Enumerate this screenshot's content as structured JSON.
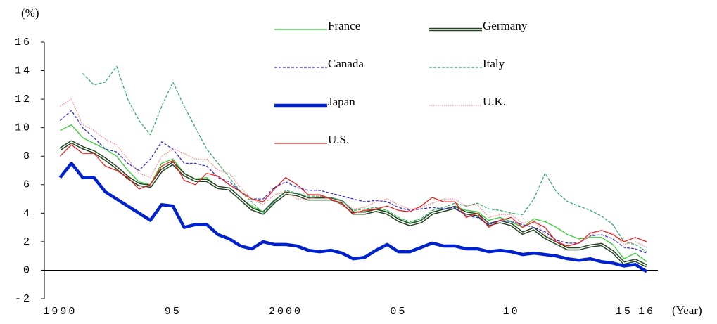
{
  "chart_data": {
    "type": "line",
    "y_label": "(%)",
    "x_label": "(Year)",
    "x": [
      1990,
      1990.5,
      1991,
      1991.5,
      1992,
      1992.5,
      1993,
      1993.5,
      1994,
      1994.5,
      1995,
      1995.5,
      1996,
      1996.5,
      1997,
      1997.5,
      1998,
      1998.5,
      1999,
      1999.5,
      2000,
      2000.5,
      2001,
      2001.5,
      2002,
      2002.5,
      2003,
      2003.5,
      2004,
      2004.5,
      2005,
      2005.5,
      2006,
      2006.5,
      2007,
      2007.5,
      2008,
      2008.5,
      2009,
      2009.5,
      2010,
      2010.5,
      2011,
      2011.5,
      2012,
      2012.5,
      2013,
      2013.5,
      2014,
      2014.5,
      2015,
      2015.5,
      2016
    ],
    "xlim": [
      1989.3,
      2016.5
    ],
    "xticks": [
      {
        "value": 1990,
        "label": "1990"
      },
      {
        "value": 1995,
        "label": "95"
      },
      {
        "value": 2000,
        "label": "2000"
      },
      {
        "value": 2005,
        "label": "05"
      },
      {
        "value": 2010,
        "label": "10"
      },
      {
        "value": 2015,
        "label": "15"
      },
      {
        "value": 2016,
        "label": "16"
      }
    ],
    "ylim": [
      -2,
      16
    ],
    "yticks": [
      -2,
      0,
      2,
      4,
      6,
      8,
      10,
      12,
      14,
      16
    ],
    "series": [
      {
        "name": "France",
        "color": "#33cc33",
        "style": "solid",
        "values": [
          9.8,
          10.2,
          9.3,
          8.9,
          8.5,
          8.0,
          7.0,
          6.2,
          6.0,
          7.5,
          7.8,
          6.8,
          6.4,
          6.5,
          5.8,
          5.7,
          5.0,
          4.5,
          4.1,
          4.9,
          5.5,
          5.3,
          5.0,
          5.1,
          5.0,
          4.7,
          4.1,
          4.1,
          4.3,
          4.1,
          3.6,
          3.3,
          3.5,
          4.0,
          4.2,
          4.5,
          4.2,
          4.1,
          3.5,
          3.7,
          3.4,
          3.0,
          3.6,
          3.4,
          3.0,
          2.5,
          2.2,
          2.3,
          2.3,
          1.8,
          0.8,
          1.2,
          0.6
        ]
      },
      {
        "name": "Germany",
        "color": "#224422",
        "style": "double",
        "values": [
          8.5,
          9.0,
          8.6,
          8.3,
          7.8,
          7.2,
          6.5,
          6.0,
          5.9,
          7.0,
          7.5,
          6.7,
          6.3,
          6.3,
          5.8,
          5.7,
          5.0,
          4.3,
          4.0,
          4.8,
          5.4,
          5.3,
          5.0,
          5.0,
          5.0,
          4.8,
          4.0,
          4.0,
          4.2,
          4.0,
          3.5,
          3.2,
          3.4,
          4.0,
          4.2,
          4.4,
          4.0,
          3.9,
          3.2,
          3.4,
          3.2,
          2.6,
          2.9,
          2.3,
          1.9,
          1.5,
          1.5,
          1.7,
          1.8,
          1.3,
          0.5,
          0.7,
          0.3
        ]
      },
      {
        "name": "Canada",
        "color": "#3333cc",
        "style": "dashed",
        "values": [
          10.5,
          11.2,
          10.0,
          9.3,
          8.5,
          8.3,
          7.5,
          7.0,
          7.8,
          9.0,
          8.5,
          7.5,
          7.5,
          7.3,
          6.5,
          6.2,
          5.5,
          5.0,
          5.0,
          5.8,
          6.2,
          5.8,
          5.6,
          5.6,
          5.4,
          5.2,
          5.0,
          4.8,
          4.9,
          4.8,
          4.4,
          4.2,
          4.3,
          4.4,
          4.3,
          4.4,
          3.8,
          3.7,
          3.2,
          3.5,
          3.4,
          3.2,
          3.0,
          2.7,
          2.1,
          1.9,
          1.9,
          2.4,
          2.5,
          2.2,
          1.6,
          1.5,
          1.2
        ]
      },
      {
        "name": "Italy",
        "color": "#33aa66",
        "style": "dashed",
        "values": [
          null,
          null,
          13.8,
          13.0,
          13.2,
          14.3,
          12.0,
          10.5,
          9.5,
          11.5,
          13.2,
          11.5,
          10.0,
          8.5,
          7.5,
          6.5,
          5.5,
          4.8,
          4.0,
          4.8,
          5.6,
          5.4,
          5.2,
          5.2,
          5.1,
          4.9,
          4.2,
          4.3,
          4.4,
          4.2,
          3.7,
          3.4,
          3.6,
          4.2,
          4.4,
          4.7,
          4.5,
          4.7,
          4.3,
          4.2,
          4.0,
          3.9,
          5.0,
          6.8,
          5.5,
          4.8,
          4.5,
          4.2,
          3.8,
          3.2,
          2.0,
          1.8,
          1.3
        ]
      },
      {
        "name": "Japan",
        "color": "#0022cc",
        "style": "thick",
        "values": [
          6.5,
          7.5,
          6.5,
          6.5,
          5.5,
          5.0,
          4.5,
          4.0,
          3.5,
          4.6,
          4.5,
          3.0,
          3.2,
          3.2,
          2.5,
          2.2,
          1.7,
          1.5,
          2.0,
          1.8,
          1.8,
          1.7,
          1.4,
          1.3,
          1.4,
          1.2,
          0.8,
          0.9,
          1.4,
          1.8,
          1.3,
          1.3,
          1.6,
          1.9,
          1.7,
          1.7,
          1.5,
          1.5,
          1.3,
          1.4,
          1.3,
          1.1,
          1.2,
          1.1,
          1.0,
          0.8,
          0.7,
          0.8,
          0.6,
          0.5,
          0.3,
          0.4,
          -0.1
        ]
      },
      {
        "name": "U.K.",
        "color": "#ff8888",
        "style": "dotted",
        "values": [
          11.5,
          12.0,
          10.2,
          9.8,
          9.2,
          8.8,
          7.8,
          6.8,
          6.5,
          8.0,
          8.5,
          8.2,
          7.8,
          7.8,
          7.0,
          6.8,
          5.8,
          5.0,
          4.6,
          5.3,
          5.5,
          5.0,
          5.0,
          5.2,
          5.0,
          4.8,
          4.3,
          4.4,
          4.8,
          5.0,
          4.6,
          4.3,
          4.4,
          4.7,
          5.0,
          5.0,
          4.5,
          4.6,
          3.7,
          3.9,
          3.9,
          3.3,
          3.5,
          2.5,
          2.0,
          1.7,
          1.9,
          2.4,
          2.8,
          2.6,
          1.8,
          2.0,
          1.6
        ]
      },
      {
        "name": "U.S.",
        "color": "#ee2222",
        "style": "solid",
        "values": [
          8.0,
          8.8,
          8.2,
          8.2,
          7.3,
          7.0,
          6.5,
          5.7,
          6.0,
          7.3,
          7.7,
          6.3,
          6.0,
          6.8,
          6.6,
          6.0,
          5.5,
          5.0,
          4.8,
          5.7,
          6.5,
          6.0,
          5.3,
          5.3,
          5.0,
          4.6,
          4.0,
          4.2,
          4.3,
          4.5,
          4.2,
          4.1,
          4.5,
          5.1,
          4.8,
          4.8,
          3.7,
          4.0,
          3.0,
          3.5,
          3.7,
          3.0,
          3.4,
          3.0,
          2.0,
          1.7,
          1.9,
          2.6,
          2.8,
          2.5,
          2.0,
          2.3,
          2.0
        ]
      }
    ]
  }
}
